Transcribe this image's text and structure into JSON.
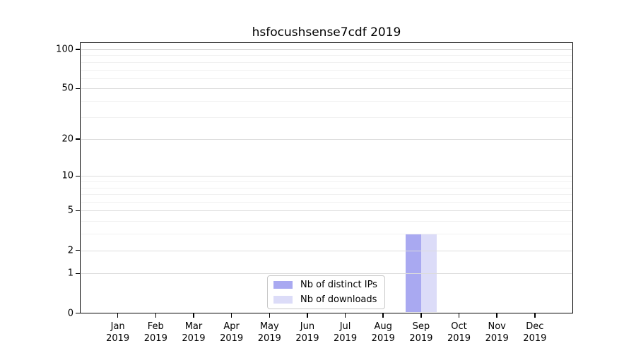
{
  "title": "hsfocushsense7cdf 2019",
  "style": {
    "background": "#ffffff",
    "bar_distinct_ips_color": "#a9a9f1",
    "bar_downloads_color": "#dcdcf8",
    "grid_major_color": "#dcdcdc",
    "grid_top_color": "#c6c6c6",
    "grid_minor_color": "#f1f1f1",
    "spine_color": "#000000",
    "text_color": "#000000",
    "legend_border_color": "#c8c8c8"
  },
  "legend": {
    "items": [
      {
        "label": "Nb of distinct IPs",
        "color": "#a9a9f1"
      },
      {
        "label": "Nb of downloads",
        "color": "#dcdcf8"
      }
    ]
  },
  "chart_data": {
    "type": "bar",
    "title": "hsfocushsense7cdf 2019",
    "categories": [
      "Jan",
      "Feb",
      "Mar",
      "Apr",
      "May",
      "Jun",
      "Jul",
      "Aug",
      "Sep",
      "Oct",
      "Nov",
      "Dec"
    ],
    "year_label": "2019",
    "series": [
      {
        "name": "Nb of distinct IPs",
        "color": "#a9a9f1",
        "values": [
          0,
          0,
          0,
          0,
          0,
          0,
          0,
          0,
          3,
          0,
          0,
          0
        ]
      },
      {
        "name": "Nb of downloads",
        "color": "#dcdcf8",
        "values": [
          0,
          0,
          0,
          0,
          0,
          0,
          0,
          0,
          3,
          0,
          0,
          0
        ]
      }
    ],
    "xlabel": "",
    "ylabel": "",
    "yscale": "log1p",
    "ylim": [
      0,
      100
    ],
    "yticks": [
      0,
      1,
      2,
      5,
      10,
      20,
      50,
      100
    ],
    "minor_gridlines": [
      3,
      4,
      6,
      7,
      8,
      9,
      30,
      40,
      60,
      70,
      80,
      90
    ],
    "grid": true,
    "legend_position": "lower center"
  }
}
